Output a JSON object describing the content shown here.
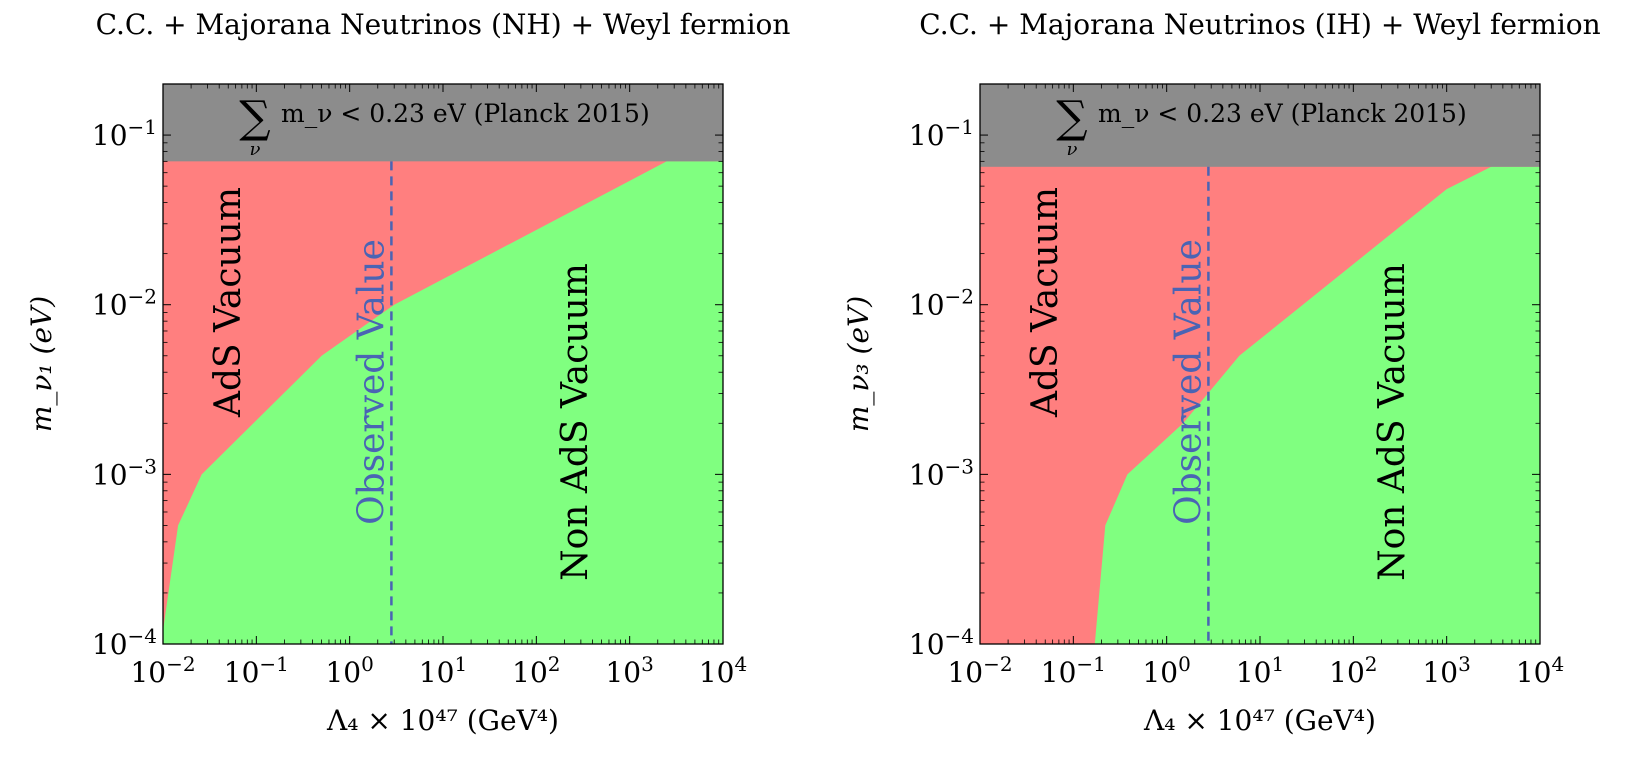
{
  "colors": {
    "ads": "#ff7f7f",
    "non_ads": "#80ff80",
    "excluded": "#8c8c8c",
    "observed_line": "#4a64b4",
    "axis": "#000000"
  },
  "chart_data": [
    {
      "type": "area",
      "title": "C.C. + Majorana Neutrinos (NH) + Weyl fermion",
      "xlabel": "Λ₄ × 10⁴⁷ (GeV⁴)",
      "ylabel": "m_ν₁ (eV)",
      "xscale": "log",
      "yscale": "log",
      "xlim": [
        0.01,
        10000
      ],
      "ylim": [
        0.0001,
        0.2
      ],
      "xticks": [
        0.01,
        0.1,
        1,
        10,
        100,
        1000,
        10000
      ],
      "xtick_labels": [
        {
          "base": "10",
          "exp": "−2"
        },
        {
          "base": "10",
          "exp": "−1"
        },
        {
          "base": "10",
          "exp": "0"
        },
        {
          "base": "10",
          "exp": "1"
        },
        {
          "base": "10",
          "exp": "2"
        },
        {
          "base": "10",
          "exp": "3"
        },
        {
          "base": "10",
          "exp": "4"
        }
      ],
      "yticks": [
        0.0001,
        0.001,
        0.01,
        0.1
      ],
      "ytick_labels": [
        {
          "base": "10",
          "exp": "−4"
        },
        {
          "base": "10",
          "exp": "−3"
        },
        {
          "base": "10",
          "exp": "−2"
        },
        {
          "base": "10",
          "exp": "−1"
        }
      ],
      "boundary": {
        "x": [
          0.01,
          0.0145,
          0.026,
          0.5,
          3,
          2500,
          10000
        ],
        "y": [
          0.00012,
          0.0005,
          0.001,
          0.005,
          0.01,
          0.07,
          0.07
        ]
      },
      "planck_limit_eV": 0.07,
      "observed_value_x": 2.8,
      "band_label": {
        "sum": "∑",
        "sub": "ν",
        "text": "m_ν < 0.23 eV (Planck 2015)"
      },
      "region_labels": {
        "ads": "AdS Vacuum",
        "non_ads": "Non AdS Vacuum",
        "observed": "Observed Value"
      }
    },
    {
      "type": "area",
      "title": "C.C. + Majorana Neutrinos (IH) + Weyl fermion",
      "xlabel": "Λ₄ × 10⁴⁷ (GeV⁴)",
      "ylabel": "m_ν₃ (eV)",
      "xscale": "log",
      "yscale": "log",
      "xlim": [
        0.01,
        10000
      ],
      "ylim": [
        0.0001,
        0.2
      ],
      "xticks": [
        0.01,
        0.1,
        1,
        10,
        100,
        1000,
        10000
      ],
      "xtick_labels": [
        {
          "base": "10",
          "exp": "−2"
        },
        {
          "base": "10",
          "exp": "−1"
        },
        {
          "base": "10",
          "exp": "0"
        },
        {
          "base": "10",
          "exp": "1"
        },
        {
          "base": "10",
          "exp": "2"
        },
        {
          "base": "10",
          "exp": "3"
        },
        {
          "base": "10",
          "exp": "4"
        }
      ],
      "yticks": [
        0.0001,
        0.001,
        0.01,
        0.1
      ],
      "ytick_labels": [
        {
          "base": "10",
          "exp": "−4"
        },
        {
          "base": "10",
          "exp": "−3"
        },
        {
          "base": "10",
          "exp": "−2"
        },
        {
          "base": "10",
          "exp": "−1"
        }
      ],
      "boundary": {
        "x": [
          0.17,
          0.22,
          0.38,
          1.5,
          6,
          1000,
          3000,
          10000
        ],
        "y": [
          0.0001,
          0.0005,
          0.001,
          0.002,
          0.005,
          0.048,
          0.065,
          0.065
        ]
      },
      "planck_limit_eV": 0.065,
      "observed_value_x": 2.8,
      "band_label": {
        "sum": "∑",
        "sub": "ν",
        "text": "m_ν < 0.23 eV (Planck 2015)"
      },
      "region_labels": {
        "ads": "AdS Vacuum",
        "non_ads": "Non AdS Vacuum",
        "observed": "Observed Value"
      }
    }
  ]
}
